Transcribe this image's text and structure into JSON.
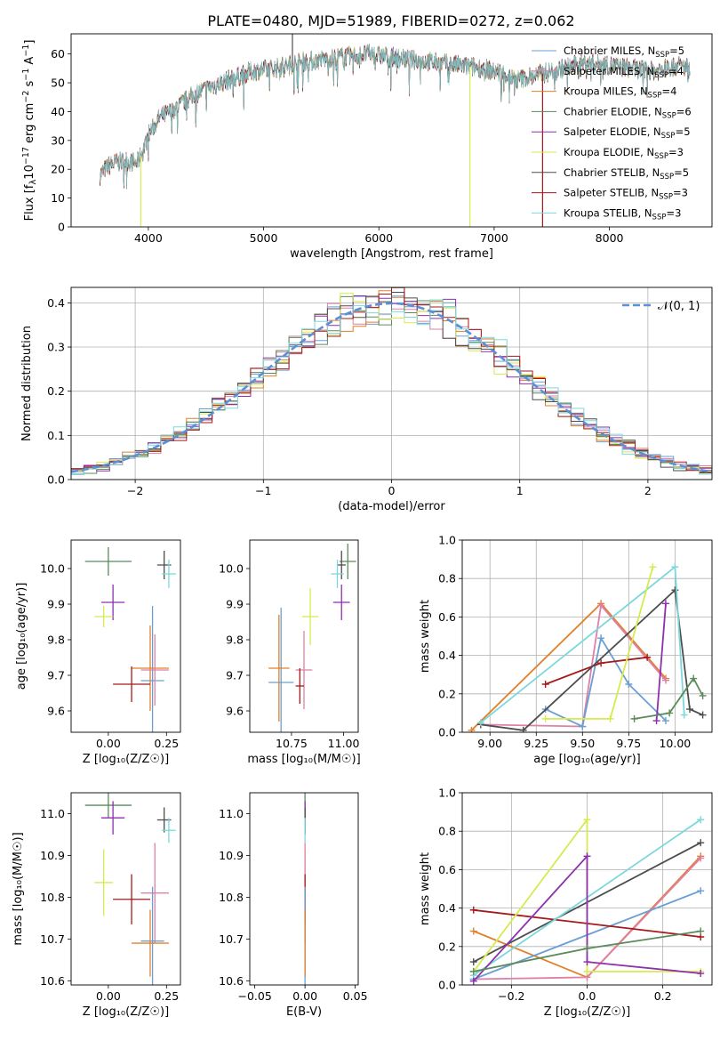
{
  "title": "PLATE=0480, MJD=51989, FIBERID=0272, z=0.062",
  "colors": {
    "chab_miles": "#6a9fd3",
    "salp_miles": "#e07fa8",
    "krou_miles": "#e0802a",
    "chab_elodie": "#5b8a5b",
    "salp_elodie": "#8e2fae",
    "krou_elodie": "#d7ea4e",
    "chab_stelib": "#4d4d4d",
    "salp_stelib": "#a51a1a",
    "krou_stelib": "#7dd8dc",
    "gauss": "#5b8fd6"
  },
  "chart_data": [
    {
      "id": "spectrum",
      "type": "line",
      "xlabel": "wavelength [Angstrom, rest frame]",
      "ylabel_main": "Flux [f",
      "ylabel_lambda": "λ",
      "ylabel_tail": "10",
      "ylabel_exp": "−17",
      "ylabel_units": " erg cm",
      "ylabel_exp2": "−2",
      "ylabel_s": " s",
      "ylabel_exp3": "−1",
      "ylabel_A": " A",
      "ylabel_exp4": "−1",
      "ylabel_close": "]",
      "xlim": [
        3330,
        8890
      ],
      "ylim": [
        0,
        67
      ],
      "xticks": [
        4000,
        5000,
        6000,
        7000,
        8000
      ],
      "yticks": [
        0,
        10,
        20,
        30,
        40,
        50,
        60
      ],
      "legend_loc": "upper right",
      "continuum": {
        "x": [
          3580,
          3650,
          3700,
          3800,
          3900,
          3950,
          4000,
          4100,
          4200,
          4300,
          4400,
          4500,
          4700,
          4900,
          5100,
          5300,
          5500,
          5700,
          5900,
          6100,
          6300,
          6500,
          6700,
          6900,
          7000,
          7100,
          7200,
          7400,
          7600,
          7800,
          8000,
          8200,
          8400,
          8600,
          8700
        ],
        "y": [
          18,
          21,
          22,
          23,
          22,
          26,
          32,
          38,
          40,
          43,
          46,
          48,
          51,
          54,
          55,
          57,
          58,
          59,
          60,
          59,
          58,
          57,
          56,
          55,
          54,
          53,
          51,
          53,
          55,
          57,
          56,
          55,
          54,
          56,
          55
        ]
      },
      "dips": [
        {
          "x": 3934,
          "y": 0,
          "series": "krou_elodie"
        },
        {
          "x": 5250,
          "y": 67,
          "series": "chab_stelib"
        },
        {
          "x": 6790,
          "y": 0,
          "series": "krou_elodie"
        },
        {
          "x": 7420,
          "y": 0,
          "series": "salp_stelib"
        }
      ],
      "series": [
        {
          "key": "chab_miles",
          "name_pre": "Chabrier MILES, N",
          "name_sub": "SSP",
          "name_post": "=5"
        },
        {
          "key": "salp_miles",
          "name_pre": "Salpeter MILES, N",
          "name_sub": "SSP",
          "name_post": "=4"
        },
        {
          "key": "krou_miles",
          "name_pre": "Kroupa MILES, N",
          "name_sub": "SSP",
          "name_post": "=4"
        },
        {
          "key": "chab_elodie",
          "name_pre": "Chabrier ELODIE, N",
          "name_sub": "SSP",
          "name_post": "=6"
        },
        {
          "key": "salp_elodie",
          "name_pre": "Salpeter ELODIE, N",
          "name_sub": "SSP",
          "name_post": "=5"
        },
        {
          "key": "krou_elodie",
          "name_pre": "Kroupa ELODIE, N",
          "name_sub": "SSP",
          "name_post": "=3"
        },
        {
          "key": "chab_stelib",
          "name_pre": "Chabrier STELIB, N",
          "name_sub": "SSP",
          "name_post": "=5"
        },
        {
          "key": "salp_stelib",
          "name_pre": "Salpeter STELIB, N",
          "name_sub": "SSP",
          "name_post": "=3"
        },
        {
          "key": "krou_stelib",
          "name_pre": "Kroupa STELIB, N",
          "name_sub": "SSP",
          "name_post": "=3"
        }
      ]
    },
    {
      "id": "residuals",
      "type": "histogram",
      "xlabel": "(data-model)/error",
      "ylabel": "Normed distribution",
      "xlim": [
        -2.5,
        2.5
      ],
      "ylim": [
        0,
        0.435
      ],
      "xticks": [
        -2,
        -1,
        0,
        1,
        2
      ],
      "yticks": [
        0.0,
        0.1,
        0.2,
        0.3,
        0.4
      ],
      "grid": true,
      "legend_loc": "upper right",
      "legend_label": "𝒩(0, 1)",
      "bin_width": 0.1
    },
    {
      "id": "age_vs_Z",
      "type": "errorbar",
      "xlabel": "Z [log₁₀(Z/Z☉)]",
      "ylabel": "age  [log₁₀(age/yr)]",
      "xlim": [
        -0.16,
        0.31
      ],
      "ylim": [
        9.54,
        10.08
      ],
      "xticks": [
        0.0,
        0.25
      ],
      "yticks": [
        9.6,
        9.7,
        9.8,
        9.9,
        10.0
      ],
      "points": [
        {
          "key": "chab_elodie",
          "x": 0.0,
          "xerr": 0.1,
          "y": 10.02,
          "yerr": 0.04
        },
        {
          "key": "chab_stelib",
          "x": 0.24,
          "xerr": 0.03,
          "y": 10.01,
          "yerr": 0.04
        },
        {
          "key": "krou_stelib",
          "x": 0.26,
          "xerr": 0.03,
          "y": 9.985,
          "yerr": 0.04
        },
        {
          "key": "salp_elodie",
          "x": 0.02,
          "xerr": 0.05,
          "y": 9.905,
          "yerr": 0.05
        },
        {
          "key": "krou_elodie",
          "x": -0.02,
          "xerr": 0.04,
          "y": 9.865,
          "yerr": 0.03
        },
        {
          "key": "chab_miles",
          "x": 0.19,
          "xerr": 0.05,
          "y": 9.685,
          "yerr": 0.21
        },
        {
          "key": "krou_miles",
          "x": 0.18,
          "xerr": 0.08,
          "y": 9.72,
          "yerr": 0.12
        },
        {
          "key": "salp_miles",
          "x": 0.2,
          "xerr": 0.06,
          "y": 9.715,
          "yerr": 0.1
        },
        {
          "key": "salp_stelib",
          "x": 0.1,
          "xerr": 0.08,
          "y": 9.675,
          "yerr": 0.05
        }
      ]
    },
    {
      "id": "age_vs_mass",
      "type": "errorbar",
      "xlabel": "mass [log₁₀(M/M☉)]",
      "xlim": [
        10.55,
        11.07
      ],
      "ylim": [
        9.54,
        10.08
      ],
      "xticks": [
        10.75,
        11.0
      ],
      "yticks": [
        9.6,
        9.7,
        9.8,
        9.9,
        10.0
      ],
      "points": [
        {
          "key": "chab_elodie",
          "x": 11.02,
          "xerr": 0.04,
          "y": 10.02,
          "yerr": 0.05
        },
        {
          "key": "chab_stelib",
          "x": 10.99,
          "xerr": 0.02,
          "y": 10.01,
          "yerr": 0.04
        },
        {
          "key": "krou_stelib",
          "x": 10.97,
          "xerr": 0.03,
          "y": 9.985,
          "yerr": 0.04
        },
        {
          "key": "salp_elodie",
          "x": 10.99,
          "xerr": 0.04,
          "y": 9.905,
          "yerr": 0.05
        },
        {
          "key": "krou_elodie",
          "x": 10.84,
          "xerr": 0.04,
          "y": 9.865,
          "yerr": 0.08
        },
        {
          "key": "chab_miles",
          "x": 10.7,
          "xerr": 0.06,
          "y": 9.68,
          "yerr": 0.21
        },
        {
          "key": "krou_miles",
          "x": 10.69,
          "xerr": 0.05,
          "y": 9.72,
          "yerr": 0.15
        },
        {
          "key": "salp_miles",
          "x": 10.81,
          "xerr": 0.04,
          "y": 9.715,
          "yerr": 0.11
        },
        {
          "key": "salp_stelib",
          "x": 10.79,
          "xerr": 0.02,
          "y": 9.67,
          "yerr": 0.05
        }
      ]
    },
    {
      "id": "weight_vs_age",
      "type": "line",
      "xlabel": "age  [log₁₀(age/yr)]",
      "ylabel": "mass weight",
      "xlim": [
        8.85,
        10.2
      ],
      "ylim": [
        0,
        1.0
      ],
      "xticks": [
        9.0,
        9.25,
        9.5,
        9.75,
        10.0
      ],
      "yticks": [
        0.0,
        0.2,
        0.4,
        0.6,
        0.8,
        1.0
      ],
      "grid": true,
      "series": [
        {
          "key": "krou_miles",
          "x": [
            8.9,
            9.6,
            9.95
          ],
          "y": [
            0.01,
            0.67,
            0.28
          ]
        },
        {
          "key": "salp_miles",
          "x": [
            8.95,
            9.5,
            9.6,
            9.95
          ],
          "y": [
            0.04,
            0.03,
            0.66,
            0.27
          ]
        },
        {
          "key": "chab_miles",
          "x": [
            9.3,
            9.5,
            9.6,
            9.75,
            9.95
          ],
          "y": [
            0.12,
            0.03,
            0.49,
            0.25,
            0.06
          ]
        },
        {
          "key": "salp_stelib",
          "x": [
            9.3,
            9.6,
            9.85
          ],
          "y": [
            0.25,
            0.36,
            0.39
          ]
        },
        {
          "key": "chab_stelib",
          "x": [
            8.95,
            9.18,
            10.0,
            10.08,
            10.15
          ],
          "y": [
            0.04,
            0.01,
            0.74,
            0.12,
            0.09
          ]
        },
        {
          "key": "krou_stelib",
          "x": [
            8.95,
            10.0,
            10.05
          ],
          "y": [
            0.05,
            0.86,
            0.09
          ]
        },
        {
          "key": "krou_elodie",
          "x": [
            9.3,
            9.65,
            9.88
          ],
          "y": [
            0.07,
            0.07,
            0.86
          ]
        },
        {
          "key": "salp_elodie",
          "x": [
            9.9,
            9.95
          ],
          "y": [
            0.06,
            0.67
          ]
        },
        {
          "key": "chab_elodie",
          "x": [
            9.78,
            9.97,
            10.1,
            10.15
          ],
          "y": [
            0.07,
            0.1,
            0.28,
            0.19
          ]
        }
      ]
    },
    {
      "id": "mass_vs_Z",
      "type": "errorbar",
      "xlabel": "Z [log₁₀(Z/Z☉)]",
      "ylabel": "mass [log₁₀(M/M☉)]",
      "xlim": [
        -0.16,
        0.31
      ],
      "ylim": [
        10.59,
        11.05
      ],
      "xticks": [
        0.0,
        0.25
      ],
      "yticks": [
        10.6,
        10.7,
        10.8,
        10.9,
        11.0
      ],
      "points": [
        {
          "key": "chab_elodie",
          "x": 0.0,
          "xerr": 0.1,
          "y": 11.02,
          "yerr": 0.03
        },
        {
          "key": "salp_elodie",
          "x": 0.02,
          "xerr": 0.05,
          "y": 10.99,
          "yerr": 0.04
        },
        {
          "key": "chab_stelib",
          "x": 0.24,
          "xerr": 0.03,
          "y": 10.985,
          "yerr": 0.03
        },
        {
          "key": "krou_stelib",
          "x": 0.26,
          "xerr": 0.03,
          "y": 10.96,
          "yerr": 0.03
        },
        {
          "key": "krou_elodie",
          "x": -0.02,
          "xerr": 0.04,
          "y": 10.835,
          "yerr": 0.08
        },
        {
          "key": "salp_miles",
          "x": 0.2,
          "xerr": 0.06,
          "y": 10.81,
          "yerr": 0.12
        },
        {
          "key": "salp_stelib",
          "x": 0.1,
          "xerr": 0.08,
          "y": 10.795,
          "yerr": 0.06
        },
        {
          "key": "chab_miles",
          "x": 0.19,
          "xerr": 0.05,
          "y": 10.695,
          "yerr": 0.13
        },
        {
          "key": "krou_miles",
          "x": 0.18,
          "xerr": 0.08,
          "y": 10.69,
          "yerr": 0.08
        }
      ]
    },
    {
      "id": "mass_vs_ebv",
      "type": "errorbar",
      "xlabel": "E(B-V)",
      "xlim": [
        -0.055,
        0.053
      ],
      "ylim": [
        10.59,
        11.05
      ],
      "xticks": [
        -0.05,
        0.0,
        0.05
      ],
      "yticks": [
        10.6,
        10.7,
        10.8,
        10.9,
        11.0
      ],
      "points": [
        {
          "key": "chab_elodie",
          "x": 0.0,
          "xerr": 0.0,
          "y": 11.02,
          "yerr": 0.03
        },
        {
          "key": "salp_elodie",
          "x": 0.0,
          "xerr": 0.0,
          "y": 10.99,
          "yerr": 0.04
        },
        {
          "key": "chab_stelib",
          "x": 0.0,
          "xerr": 0.0,
          "y": 10.985,
          "yerr": 0.03
        },
        {
          "key": "krou_stelib",
          "x": 0.0,
          "xerr": 0.0,
          "y": 10.96,
          "yerr": 0.03
        },
        {
          "key": "krou_elodie",
          "x": 0.0,
          "xerr": 0.0,
          "y": 10.835,
          "yerr": 0.08
        },
        {
          "key": "salp_miles",
          "x": 0.0,
          "xerr": 0.0,
          "y": 10.81,
          "yerr": 0.12
        },
        {
          "key": "salp_stelib",
          "x": 0.0,
          "xerr": 0.0,
          "y": 10.795,
          "yerr": 0.06
        },
        {
          "key": "chab_miles",
          "x": 0.0,
          "xerr": 0.0,
          "y": 10.695,
          "yerr": 0.13
        },
        {
          "key": "krou_miles",
          "x": 0.0,
          "xerr": 0.0,
          "y": 10.69,
          "yerr": 0.08
        }
      ]
    },
    {
      "id": "weight_vs_Z",
      "type": "line",
      "xlabel": "Z [log₁₀(Z/Z☉)]",
      "ylabel": "mass weight",
      "xlim": [
        -0.33,
        0.33
      ],
      "ylim": [
        0,
        1.0
      ],
      "xticks": [
        -0.2,
        0.0,
        0.2
      ],
      "yticks": [
        0.0,
        0.2,
        0.4,
        0.6,
        0.8,
        1.0
      ],
      "grid": true,
      "series": [
        {
          "key": "krou_miles",
          "x": [
            -0.3,
            0.0,
            0.3
          ],
          "y": [
            0.28,
            0.04,
            0.67
          ]
        },
        {
          "key": "salp_miles",
          "x": [
            -0.3,
            0.0,
            0.3
          ],
          "y": [
            0.03,
            0.04,
            0.66
          ]
        },
        {
          "key": "chab_miles",
          "x": [
            -0.3,
            0.3
          ],
          "y": [
            0.03,
            0.49
          ]
        },
        {
          "key": "salp_stelib",
          "x": [
            -0.3,
            0.3
          ],
          "y": [
            0.39,
            0.25
          ]
        },
        {
          "key": "chab_stelib",
          "x": [
            -0.3,
            0.3
          ],
          "y": [
            0.12,
            0.74
          ]
        },
        {
          "key": "krou_stelib",
          "x": [
            -0.3,
            0.3
          ],
          "y": [
            0.05,
            0.86
          ]
        },
        {
          "key": "krou_elodie",
          "x": [
            -0.3,
            0.0,
            0.0,
            0.3
          ],
          "y": [
            0.07,
            0.86,
            0.07,
            0.07
          ]
        },
        {
          "key": "salp_elodie",
          "x": [
            -0.3,
            0.0,
            0.0,
            0.3
          ],
          "y": [
            0.02,
            0.67,
            0.12,
            0.06
          ]
        },
        {
          "key": "chab_elodie",
          "x": [
            -0.3,
            0.0,
            0.3
          ],
          "y": [
            0.07,
            0.19,
            0.28
          ]
        }
      ]
    }
  ]
}
